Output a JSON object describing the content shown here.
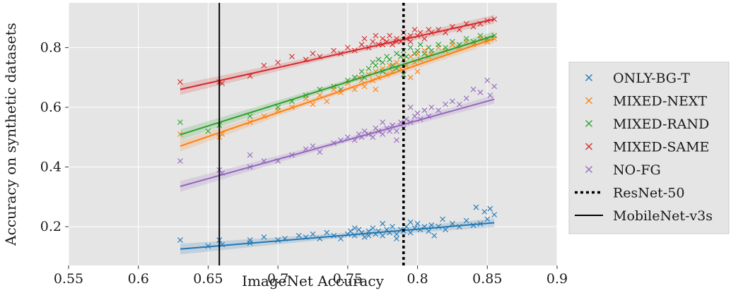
{
  "chart_data": {
    "type": "scatter",
    "title": "",
    "xlabel": "ImageNet Accuracy",
    "ylabel": "Accuracy on synthetic datasets",
    "xlim": [
      0.55,
      0.9
    ],
    "ylim": [
      0.07,
      0.95
    ],
    "xticks": [
      0.55,
      0.6,
      0.65,
      0.7,
      0.75,
      0.8,
      0.85,
      0.9
    ],
    "xtick_labels": [
      "0.55",
      "0.6",
      "0.65",
      "0.7",
      "0.75",
      "0.8",
      "0.85",
      "0.9"
    ],
    "yticks": [
      0.2,
      0.4,
      0.6,
      0.8
    ],
    "ytick_labels": [
      "0.2",
      "0.4",
      "0.6",
      "0.8"
    ],
    "grid": true,
    "legend_position": "outside-right",
    "background_color": "#e5e5e5",
    "series": [
      {
        "name": "ONLY-BG-T",
        "color": "#1f77b4",
        "fit": [
          [
            0.63,
            0.125
          ],
          [
            0.855,
            0.213
          ]
        ],
        "points": [
          [
            0.63,
            0.155
          ],
          [
            0.65,
            0.135
          ],
          [
            0.658,
            0.155
          ],
          [
            0.66,
            0.14
          ],
          [
            0.68,
            0.145
          ],
          [
            0.68,
            0.155
          ],
          [
            0.69,
            0.165
          ],
          [
            0.7,
            0.155
          ],
          [
            0.705,
            0.16
          ],
          [
            0.715,
            0.17
          ],
          [
            0.72,
            0.165
          ],
          [
            0.725,
            0.175
          ],
          [
            0.73,
            0.16
          ],
          [
            0.735,
            0.18
          ],
          [
            0.74,
            0.17
          ],
          [
            0.745,
            0.16
          ],
          [
            0.75,
            0.175
          ],
          [
            0.752,
            0.185
          ],
          [
            0.755,
            0.17
          ],
          [
            0.758,
            0.19
          ],
          [
            0.76,
            0.18
          ],
          [
            0.762,
            0.165
          ],
          [
            0.765,
            0.185
          ],
          [
            0.768,
            0.195
          ],
          [
            0.77,
            0.175
          ],
          [
            0.772,
            0.185
          ],
          [
            0.775,
            0.17
          ],
          [
            0.778,
            0.19
          ],
          [
            0.78,
            0.18
          ],
          [
            0.782,
            0.2
          ],
          [
            0.785,
            0.175
          ],
          [
            0.788,
            0.19
          ],
          [
            0.79,
            0.185
          ],
          [
            0.792,
            0.2
          ],
          [
            0.795,
            0.18
          ],
          [
            0.798,
            0.195
          ],
          [
            0.8,
            0.21
          ],
          [
            0.802,
            0.19
          ],
          [
            0.805,
            0.2
          ],
          [
            0.808,
            0.185
          ],
          [
            0.81,
            0.205
          ],
          [
            0.812,
            0.17
          ],
          [
            0.815,
            0.2
          ],
          [
            0.818,
            0.225
          ],
          [
            0.82,
            0.19
          ],
          [
            0.825,
            0.21
          ],
          [
            0.83,
            0.2
          ],
          [
            0.835,
            0.22
          ],
          [
            0.84,
            0.205
          ],
          [
            0.842,
            0.265
          ],
          [
            0.845,
            0.21
          ],
          [
            0.848,
            0.25
          ],
          [
            0.85,
            0.225
          ],
          [
            0.852,
            0.26
          ],
          [
            0.855,
            0.24
          ],
          [
            0.775,
            0.21
          ],
          [
            0.785,
            0.16
          ],
          [
            0.795,
            0.215
          ],
          [
            0.765,
            0.17
          ],
          [
            0.755,
            0.195
          ]
        ]
      },
      {
        "name": "MIXED-NEXT",
        "color": "#ff7f0e",
        "fit": [
          [
            0.63,
            0.47
          ],
          [
            0.855,
            0.83
          ]
        ],
        "points": [
          [
            0.63,
            0.51
          ],
          [
            0.658,
            0.5
          ],
          [
            0.66,
            0.51
          ],
          [
            0.68,
            0.55
          ],
          [
            0.69,
            0.57
          ],
          [
            0.7,
            0.59
          ],
          [
            0.71,
            0.6
          ],
          [
            0.72,
            0.63
          ],
          [
            0.725,
            0.61
          ],
          [
            0.73,
            0.64
          ],
          [
            0.735,
            0.62
          ],
          [
            0.74,
            0.66
          ],
          [
            0.745,
            0.65
          ],
          [
            0.75,
            0.68
          ],
          [
            0.755,
            0.66
          ],
          [
            0.758,
            0.7
          ],
          [
            0.76,
            0.69
          ],
          [
            0.762,
            0.67
          ],
          [
            0.765,
            0.71
          ],
          [
            0.768,
            0.69
          ],
          [
            0.77,
            0.72
          ],
          [
            0.772,
            0.7
          ],
          [
            0.775,
            0.73
          ],
          [
            0.778,
            0.71
          ],
          [
            0.78,
            0.74
          ],
          [
            0.782,
            0.72
          ],
          [
            0.785,
            0.75
          ],
          [
            0.788,
            0.73
          ],
          [
            0.79,
            0.76
          ],
          [
            0.792,
            0.74
          ],
          [
            0.795,
            0.77
          ],
          [
            0.798,
            0.75
          ],
          [
            0.8,
            0.78
          ],
          [
            0.802,
            0.76
          ],
          [
            0.805,
            0.79
          ],
          [
            0.808,
            0.77
          ],
          [
            0.81,
            0.78
          ],
          [
            0.815,
            0.8
          ],
          [
            0.82,
            0.79
          ],
          [
            0.825,
            0.81
          ],
          [
            0.83,
            0.8
          ],
          [
            0.835,
            0.82
          ],
          [
            0.84,
            0.81
          ],
          [
            0.845,
            0.83
          ],
          [
            0.85,
            0.82
          ],
          [
            0.855,
            0.83
          ],
          [
            0.795,
            0.7
          ],
          [
            0.8,
            0.72
          ],
          [
            0.77,
            0.66
          ]
        ]
      },
      {
        "name": "MIXED-RAND",
        "color": "#2ca02c",
        "fit": [
          [
            0.63,
            0.508
          ],
          [
            0.855,
            0.84
          ]
        ],
        "points": [
          [
            0.63,
            0.55
          ],
          [
            0.65,
            0.52
          ],
          [
            0.658,
            0.54
          ],
          [
            0.68,
            0.57
          ],
          [
            0.7,
            0.6
          ],
          [
            0.71,
            0.62
          ],
          [
            0.72,
            0.64
          ],
          [
            0.73,
            0.66
          ],
          [
            0.74,
            0.67
          ],
          [
            0.745,
            0.66
          ],
          [
            0.75,
            0.69
          ],
          [
            0.755,
            0.7
          ],
          [
            0.76,
            0.72
          ],
          [
            0.762,
            0.7
          ],
          [
            0.765,
            0.73
          ],
          [
            0.768,
            0.75
          ],
          [
            0.77,
            0.74
          ],
          [
            0.772,
            0.76
          ],
          [
            0.775,
            0.75
          ],
          [
            0.778,
            0.77
          ],
          [
            0.78,
            0.76
          ],
          [
            0.782,
            0.74
          ],
          [
            0.785,
            0.78
          ],
          [
            0.788,
            0.77
          ],
          [
            0.79,
            0.79
          ],
          [
            0.792,
            0.77
          ],
          [
            0.795,
            0.8
          ],
          [
            0.798,
            0.78
          ],
          [
            0.8,
            0.79
          ],
          [
            0.802,
            0.81
          ],
          [
            0.805,
            0.78
          ],
          [
            0.808,
            0.8
          ],
          [
            0.81,
            0.79
          ],
          [
            0.815,
            0.81
          ],
          [
            0.82,
            0.8
          ],
          [
            0.825,
            0.82
          ],
          [
            0.83,
            0.81
          ],
          [
            0.835,
            0.83
          ],
          [
            0.84,
            0.82
          ],
          [
            0.845,
            0.84
          ],
          [
            0.85,
            0.83
          ],
          [
            0.855,
            0.84
          ],
          [
            0.775,
            0.72
          ],
          [
            0.785,
            0.73
          ],
          [
            0.79,
            0.71
          ]
        ]
      },
      {
        "name": "MIXED-SAME",
        "color": "#d62728",
        "fit": [
          [
            0.63,
            0.66
          ],
          [
            0.855,
            0.895
          ]
        ],
        "points": [
          [
            0.63,
            0.685
          ],
          [
            0.658,
            0.685
          ],
          [
            0.66,
            0.68
          ],
          [
            0.68,
            0.705
          ],
          [
            0.69,
            0.74
          ],
          [
            0.7,
            0.75
          ],
          [
            0.71,
            0.77
          ],
          [
            0.72,
            0.76
          ],
          [
            0.725,
            0.78
          ],
          [
            0.73,
            0.77
          ],
          [
            0.74,
            0.79
          ],
          [
            0.745,
            0.78
          ],
          [
            0.75,
            0.8
          ],
          [
            0.755,
            0.79
          ],
          [
            0.76,
            0.81
          ],
          [
            0.762,
            0.83
          ],
          [
            0.765,
            0.8
          ],
          [
            0.768,
            0.82
          ],
          [
            0.77,
            0.84
          ],
          [
            0.772,
            0.81
          ],
          [
            0.775,
            0.83
          ],
          [
            0.778,
            0.82
          ],
          [
            0.78,
            0.84
          ],
          [
            0.782,
            0.81
          ],
          [
            0.785,
            0.83
          ],
          [
            0.788,
            0.82
          ],
          [
            0.79,
            0.85
          ],
          [
            0.792,
            0.83
          ],
          [
            0.795,
            0.84
          ],
          [
            0.798,
            0.86
          ],
          [
            0.8,
            0.84
          ],
          [
            0.802,
            0.85
          ],
          [
            0.805,
            0.83
          ],
          [
            0.808,
            0.86
          ],
          [
            0.81,
            0.85
          ],
          [
            0.815,
            0.86
          ],
          [
            0.82,
            0.85
          ],
          [
            0.825,
            0.87
          ],
          [
            0.83,
            0.86
          ],
          [
            0.835,
            0.88
          ],
          [
            0.84,
            0.87
          ],
          [
            0.845,
            0.88
          ],
          [
            0.85,
            0.89
          ],
          [
            0.855,
            0.895
          ],
          [
            0.775,
            0.81
          ],
          [
            0.785,
            0.82
          ],
          [
            0.795,
            0.82
          ]
        ]
      },
      {
        "name": "NO-FG",
        "color": "#9467bd",
        "fit": [
          [
            0.63,
            0.335
          ],
          [
            0.855,
            0.627
          ]
        ],
        "points": [
          [
            0.63,
            0.42
          ],
          [
            0.658,
            0.39
          ],
          [
            0.66,
            0.38
          ],
          [
            0.68,
            0.4
          ],
          [
            0.68,
            0.44
          ],
          [
            0.69,
            0.42
          ],
          [
            0.7,
            0.42
          ],
          [
            0.71,
            0.44
          ],
          [
            0.72,
            0.46
          ],
          [
            0.725,
            0.47
          ],
          [
            0.73,
            0.45
          ],
          [
            0.74,
            0.48
          ],
          [
            0.745,
            0.49
          ],
          [
            0.75,
            0.5
          ],
          [
            0.755,
            0.49
          ],
          [
            0.758,
            0.51
          ],
          [
            0.76,
            0.5
          ],
          [
            0.762,
            0.52
          ],
          [
            0.765,
            0.51
          ],
          [
            0.768,
            0.5
          ],
          [
            0.77,
            0.53
          ],
          [
            0.772,
            0.52
          ],
          [
            0.775,
            0.51
          ],
          [
            0.778,
            0.53
          ],
          [
            0.78,
            0.52
          ],
          [
            0.782,
            0.54
          ],
          [
            0.785,
            0.52
          ],
          [
            0.788,
            0.55
          ],
          [
            0.79,
            0.53
          ],
          [
            0.792,
            0.56
          ],
          [
            0.795,
            0.55
          ],
          [
            0.798,
            0.57
          ],
          [
            0.8,
            0.58
          ],
          [
            0.802,
            0.56
          ],
          [
            0.805,
            0.59
          ],
          [
            0.808,
            0.57
          ],
          [
            0.81,
            0.6
          ],
          [
            0.815,
            0.59
          ],
          [
            0.82,
            0.61
          ],
          [
            0.825,
            0.62
          ],
          [
            0.83,
            0.61
          ],
          [
            0.835,
            0.63
          ],
          [
            0.84,
            0.66
          ],
          [
            0.845,
            0.65
          ],
          [
            0.85,
            0.69
          ],
          [
            0.852,
            0.64
          ],
          [
            0.855,
            0.67
          ],
          [
            0.795,
            0.6
          ],
          [
            0.785,
            0.49
          ],
          [
            0.775,
            0.55
          ]
        ]
      }
    ],
    "vlines": [
      {
        "name": "ResNet-50",
        "x": 0.79,
        "style": "dotted",
        "color": "#000000"
      },
      {
        "name": "MobileNet-v3s",
        "x": 0.658,
        "style": "solid",
        "color": "#000000"
      }
    ]
  },
  "legend": {
    "items": [
      {
        "label": "ONLY-BG-T",
        "marker": "x",
        "color": "#1f77b4"
      },
      {
        "label": "MIXED-NEXT",
        "marker": "x",
        "color": "#ff7f0e"
      },
      {
        "label": "MIXED-RAND",
        "marker": "x",
        "color": "#2ca02c"
      },
      {
        "label": "MIXED-SAME",
        "marker": "x",
        "color": "#d62728"
      },
      {
        "label": "NO-FG",
        "marker": "x",
        "color": "#9467bd"
      },
      {
        "label": "ResNet-50",
        "marker": "dotted-line",
        "color": "#000000"
      },
      {
        "label": "MobileNet-v3s",
        "marker": "solid-line",
        "color": "#000000"
      }
    ]
  }
}
